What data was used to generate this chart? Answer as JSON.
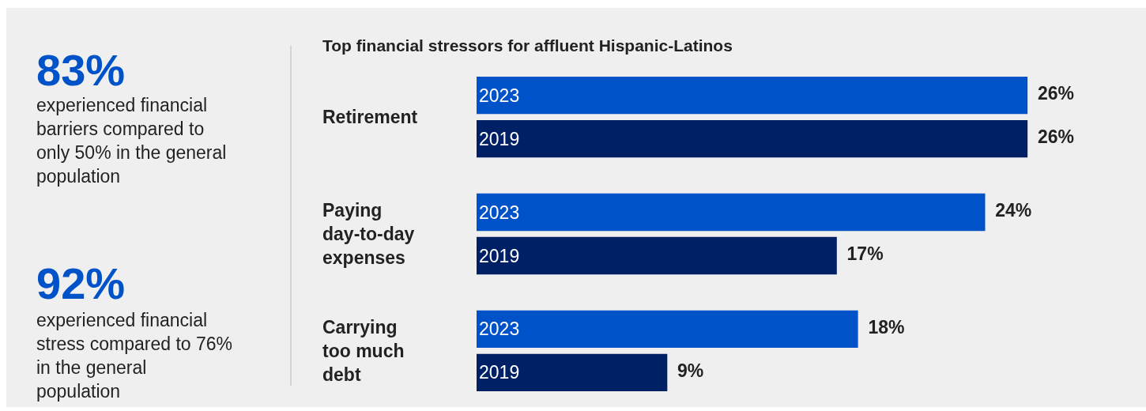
{
  "chart_data": [
    {
      "type": "other",
      "annotations": [
        "83%",
        "experienced financial barriers compared to only 50% in the general population",
        "92%",
        "experienced financial stress compared to 76% in the general population"
      ]
    },
    {
      "type": "bar",
      "orientation": "horizontal",
      "title": "Top financial stressors for affluent Hispanic-Latinos",
      "categories": [
        "Retirement",
        "Paying day-to-day expenses",
        "Carrying too much debt"
      ],
      "series": [
        {
          "name": "2023",
          "color": "#0052c8",
          "values": [
            26,
            24,
            18
          ],
          "value_labels": [
            "26%",
            "24%",
            "18%"
          ]
        },
        {
          "name": "2019",
          "color": "#002066",
          "values": [
            26,
            17,
            9
          ],
          "value_labels": [
            "26%",
            "17%",
            "9%"
          ]
        }
      ],
      "legend": false
    }
  ]
}
